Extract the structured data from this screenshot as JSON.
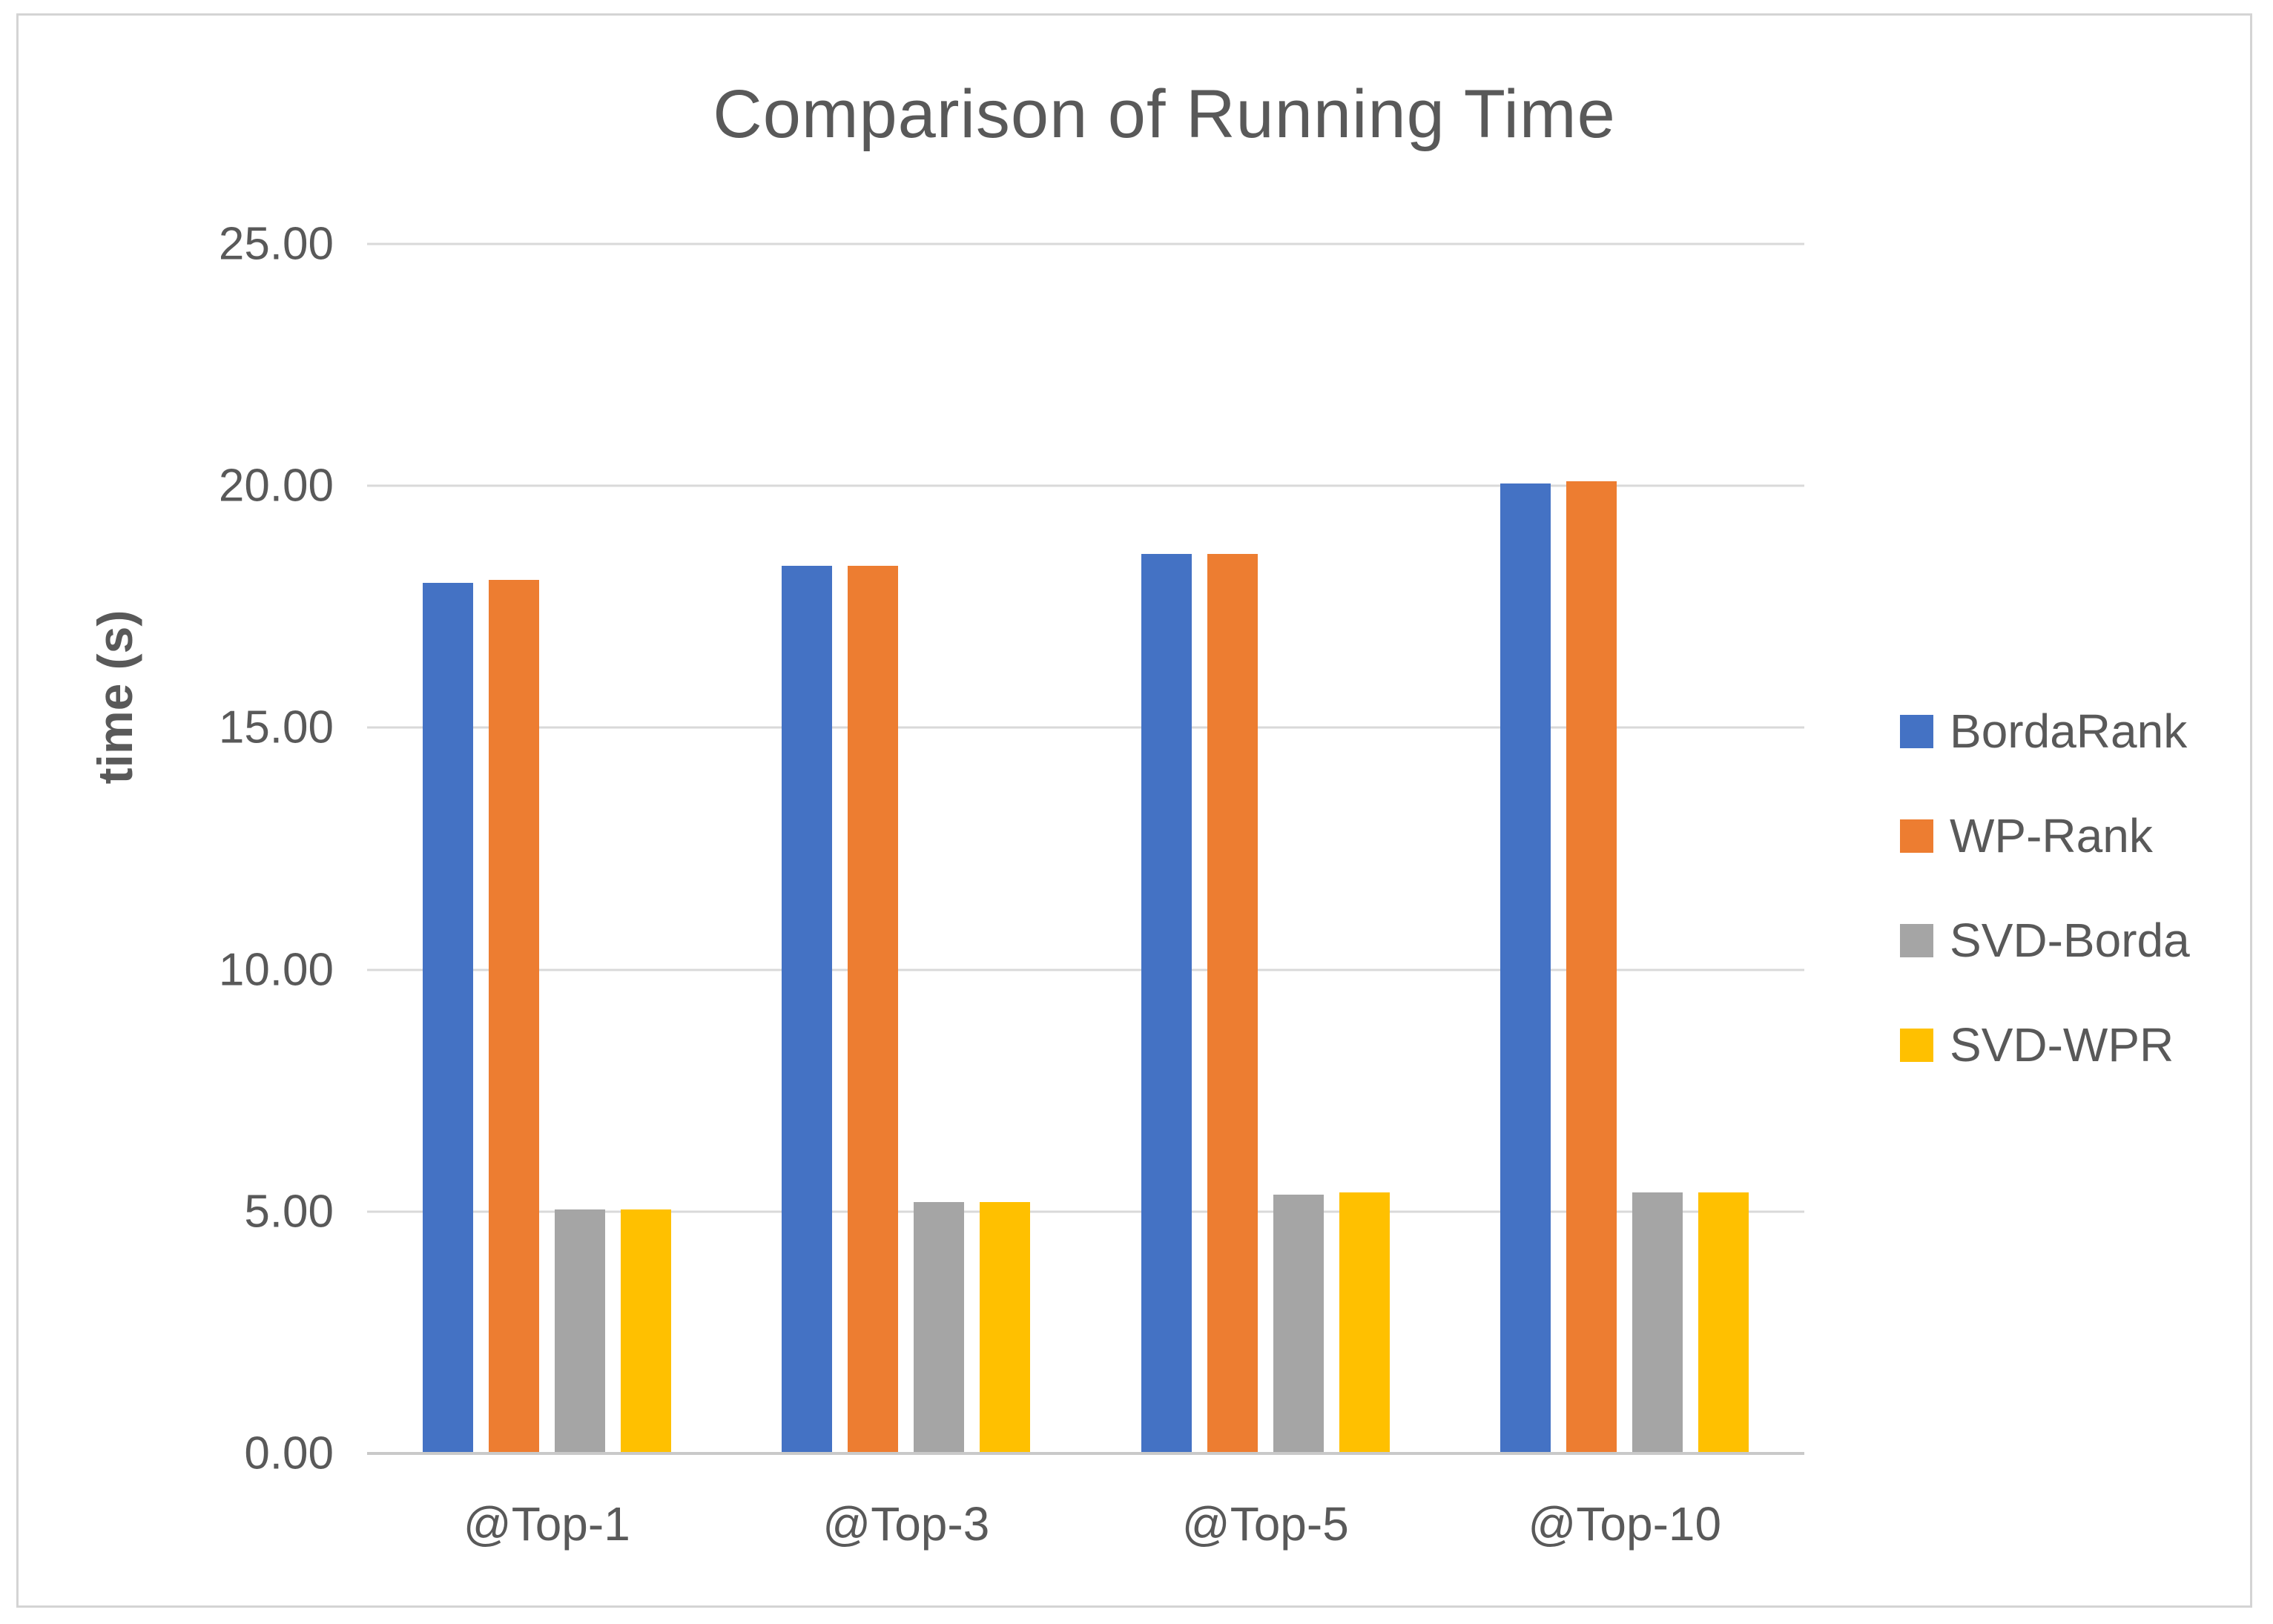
{
  "chart_data": {
    "type": "bar",
    "title": "Comparison of Running Time",
    "xlabel": "",
    "ylabel": "time (s)",
    "categories": [
      "@Top-1",
      "@Top-3",
      "@Top-5",
      "@Top-10"
    ],
    "series": [
      {
        "name": "BordaRank",
        "color": "#4472C4",
        "values": [
          18.0,
          18.35,
          18.6,
          20.05
        ]
      },
      {
        "name": "WP-Rank",
        "color": "#ED7D31",
        "values": [
          18.05,
          18.35,
          18.6,
          20.1
        ]
      },
      {
        "name": "SVD-Borda",
        "color": "#A5A5A5",
        "values": [
          5.05,
          5.2,
          5.35,
          5.4
        ]
      },
      {
        "name": "SVD-WPR",
        "color": "#FFC000",
        "values": [
          5.05,
          5.2,
          5.4,
          5.4
        ]
      }
    ],
    "ylim": [
      0,
      25
    ],
    "yticks": [
      {
        "value": 0,
        "label": "0.00"
      },
      {
        "value": 5,
        "label": "5.00"
      },
      {
        "value": 10,
        "label": "10.00"
      },
      {
        "value": 15,
        "label": "15.00"
      },
      {
        "value": 20,
        "label": "20.00"
      },
      {
        "value": 25,
        "label": "25.00"
      }
    ],
    "grid": true,
    "legend_position": "right"
  },
  "colors": {
    "grid": "#D9D9D9",
    "axis": "#C9C9C9",
    "text": "#595959",
    "frame": "#D4D4D4",
    "background": "#FFFFFF"
  }
}
